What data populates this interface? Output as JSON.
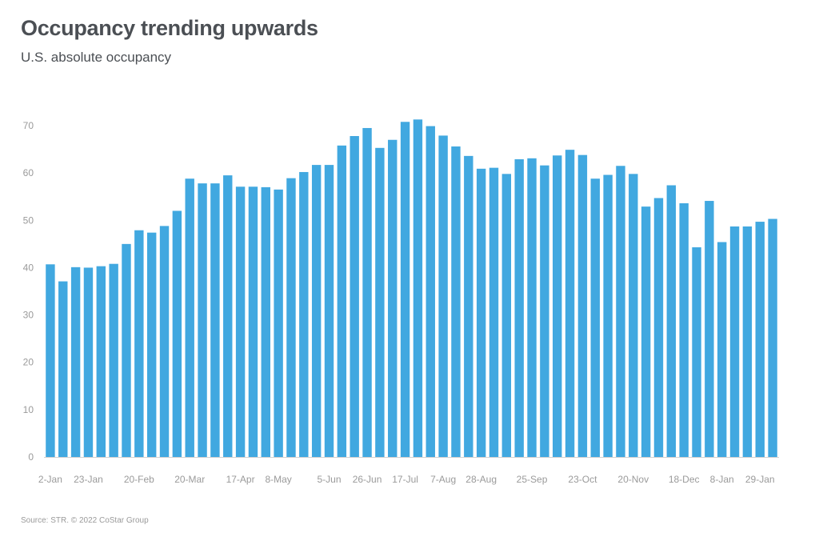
{
  "header": {
    "title": "Occupancy trending upwards",
    "subtitle": "U.S. absolute occupancy"
  },
  "footer": {
    "source": "Source: STR. © 2022 CoStar Group"
  },
  "colors": {
    "bar": "#41a8e0",
    "title": "#4b4f54",
    "axis_text": "#9a9a9a"
  },
  "chart_data": {
    "type": "bar",
    "title": "Occupancy trending upwards",
    "subtitle": "U.S. absolute occupancy",
    "xlabel": "",
    "ylabel": "",
    "ylim": [
      0,
      70
    ],
    "yticks": [
      0,
      10,
      20,
      30,
      40,
      50,
      60,
      70
    ],
    "grid": false,
    "legend": "none",
    "values": [
      40.7,
      37.1,
      40.1,
      40.0,
      40.3,
      40.8,
      45.0,
      47.9,
      47.4,
      48.8,
      52.0,
      58.8,
      57.8,
      57.8,
      59.5,
      57.1,
      57.1,
      57.0,
      56.5,
      58.9,
      60.2,
      61.7,
      61.7,
      65.8,
      67.8,
      69.5,
      65.3,
      67.0,
      70.8,
      71.3,
      69.9,
      67.9,
      65.6,
      63.6,
      60.9,
      61.1,
      59.8,
      62.9,
      63.1,
      61.6,
      63.7,
      64.9,
      63.8,
      58.8,
      59.6,
      61.5,
      59.8,
      52.9,
      54.7,
      57.4,
      53.6,
      44.3,
      54.1,
      45.4,
      48.7,
      48.7,
      49.7,
      50.3
    ],
    "x_tick_labels": [
      {
        "index": 0,
        "label": "2-Jan"
      },
      {
        "index": 3,
        "label": "23-Jan"
      },
      {
        "index": 7,
        "label": "20-Feb"
      },
      {
        "index": 11,
        "label": "20-Mar"
      },
      {
        "index": 15,
        "label": "17-Apr"
      },
      {
        "index": 18,
        "label": "8-May"
      },
      {
        "index": 22,
        "label": "5-Jun"
      },
      {
        "index": 25,
        "label": "26-Jun"
      },
      {
        "index": 28,
        "label": "17-Jul"
      },
      {
        "index": 31,
        "label": "7-Aug"
      },
      {
        "index": 34,
        "label": "28-Aug"
      },
      {
        "index": 38,
        "label": "25-Sep"
      },
      {
        "index": 42,
        "label": "23-Oct"
      },
      {
        "index": 46,
        "label": "20-Nov"
      },
      {
        "index": 50,
        "label": "18-Dec"
      },
      {
        "index": 53,
        "label": "8-Jan"
      },
      {
        "index": 56,
        "label": "29-Jan"
      }
    ]
  }
}
